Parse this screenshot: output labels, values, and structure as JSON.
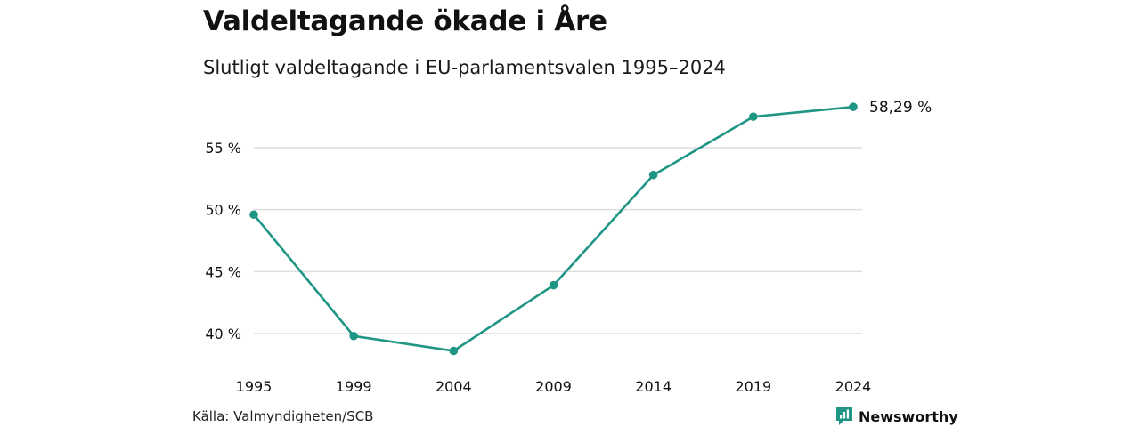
{
  "title": "Valdeltagande ökade i Åre",
  "subtitle": "Slutligt valdeltagande i EU-parlamentsvalen 1995–2024",
  "source": "Källa: Valmyndigheten/SCB",
  "brand": "Newsworthy",
  "colors": {
    "series": "#1f9584",
    "grid": "#dddddd",
    "text": "#111111"
  },
  "chart_data": {
    "type": "line",
    "title": "Valdeltagande ökade i Åre",
    "subtitle": "Slutligt valdeltagande i EU-parlamentsvalen 1995–2024",
    "x": [
      "1995",
      "1999",
      "2004",
      "2009",
      "2014",
      "2019",
      "2024"
    ],
    "series": [
      {
        "values": [
          49.6,
          39.8,
          38.6,
          43.9,
          52.8,
          57.5,
          58.29
        ]
      }
    ],
    "yticks": [
      40,
      45,
      50,
      55
    ],
    "ytick_labels": [
      "40 %",
      "45 %",
      "50 %",
      "55 %"
    ],
    "ylim": [
      37.5,
      59
    ],
    "grid": true,
    "end_label": "58,29 %"
  }
}
